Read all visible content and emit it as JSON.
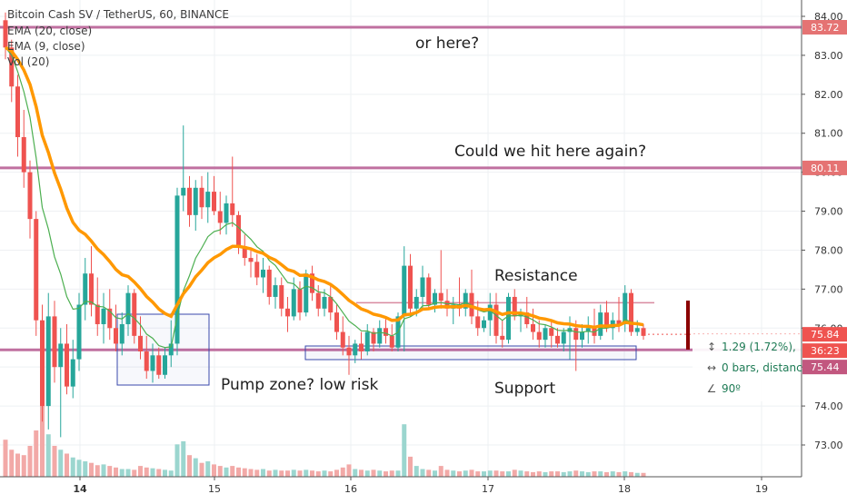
{
  "header": {
    "title": "Bitcoin Cash SV / TetherUS, 60, BINANCE",
    "indicators": [
      "EMA (20, close)",
      "EMA (9, close)",
      "Vol (20)"
    ]
  },
  "annotations": {
    "top": "or here?",
    "middle": "Could we hit here again?",
    "resistance": "Resistance",
    "support": "Support",
    "pump": "Pump zone? low risk"
  },
  "measure": {
    "change": "1.29 (1.72%),",
    "bars": "0 bars, distanc",
    "angle": "90º"
  },
  "colors": {
    "up": "#26a69a",
    "down": "#ef5350",
    "ema20": "#ff9800",
    "ema9": "#4caf50",
    "hline": "#c070a0",
    "box": "#3949ab",
    "price_tag": "#e57373",
    "current_tag": "#ef5350"
  },
  "chart_data": {
    "type": "candlestick",
    "title": "Bitcoin Cash SV / TetherUS, 60, BINANCE",
    "y_ticks": [
      "84.00",
      "83.00",
      "82.00",
      "81.00",
      "80.00",
      "79.00",
      "78.00",
      "77.00",
      "76.00",
      "75.00",
      "74.00",
      "73.00"
    ],
    "x_ticks": [
      "14",
      "15",
      "16",
      "17",
      "18",
      "19"
    ],
    "price_labels": [
      "83.72",
      "80.11",
      "75.84",
      "36:23",
      "75.44"
    ],
    "ylim": [
      72.2,
      84.3
    ],
    "horizontal_levels": [
      83.72,
      80.11,
      75.44
    ],
    "resistance_level": 76.65,
    "current_price": 75.84,
    "candles": [
      [
        83.9,
        84.1,
        82.9,
        83.2
      ],
      [
        83.2,
        83.4,
        81.8,
        82.2
      ],
      [
        82.2,
        82.5,
        80.4,
        80.9
      ],
      [
        80.9,
        81.6,
        79.6,
        80.0
      ],
      [
        80.0,
        80.3,
        78.3,
        78.8
      ],
      [
        78.8,
        79.0,
        75.8,
        76.2
      ],
      [
        76.2,
        76.6,
        73.6,
        74.0
      ],
      [
        74.0,
        76.9,
        73.4,
        76.3
      ],
      [
        76.3,
        76.7,
        74.6,
        75.0
      ],
      [
        75.0,
        76.0,
        73.2,
        75.6
      ],
      [
        75.6,
        76.1,
        74.3,
        74.5
      ],
      [
        74.5,
        75.7,
        74.2,
        75.2
      ],
      [
        75.2,
        76.9,
        74.9,
        76.6
      ],
      [
        76.6,
        77.8,
        76.2,
        77.4
      ],
      [
        77.4,
        78.1,
        76.3,
        76.6
      ],
      [
        76.6,
        77.3,
        75.8,
        76.1
      ],
      [
        76.1,
        76.9,
        75.6,
        76.5
      ],
      [
        76.5,
        77.0,
        75.7,
        76.0
      ],
      [
        76.0,
        76.6,
        75.4,
        75.6
      ],
      [
        75.6,
        76.4,
        75.3,
        76.1
      ],
      [
        76.1,
        77.1,
        75.8,
        76.9
      ],
      [
        76.9,
        77.0,
        75.6,
        75.8
      ],
      [
        75.8,
        76.3,
        75.2,
        75.4
      ],
      [
        75.4,
        75.8,
        74.7,
        74.9
      ],
      [
        74.9,
        75.6,
        74.6,
        75.3
      ],
      [
        75.3,
        75.5,
        74.7,
        74.8
      ],
      [
        74.8,
        75.5,
        74.7,
        75.3
      ],
      [
        75.3,
        76.2,
        75.0,
        75.6
      ],
      [
        75.6,
        79.6,
        75.3,
        79.4
      ],
      [
        79.4,
        81.2,
        79.0,
        79.6
      ],
      [
        79.6,
        79.9,
        78.6,
        78.9
      ],
      [
        78.9,
        79.8,
        78.5,
        79.6
      ],
      [
        79.6,
        79.9,
        78.8,
        79.1
      ],
      [
        79.1,
        80.0,
        78.7,
        79.5
      ],
      [
        79.5,
        79.9,
        78.9,
        79.0
      ],
      [
        79.0,
        79.5,
        78.4,
        78.7
      ],
      [
        78.7,
        79.4,
        78.4,
        79.2
      ],
      [
        79.2,
        80.4,
        78.6,
        78.9
      ],
      [
        78.9,
        79.0,
        77.9,
        78.1
      ],
      [
        78.1,
        78.4,
        77.6,
        77.8
      ],
      [
        77.8,
        78.0,
        77.3,
        77.7
      ],
      [
        77.7,
        77.9,
        77.1,
        77.3
      ],
      [
        77.3,
        77.8,
        76.9,
        77.5
      ],
      [
        77.5,
        77.6,
        76.6,
        76.8
      ],
      [
        76.8,
        77.3,
        76.5,
        77.1
      ],
      [
        77.1,
        77.3,
        76.3,
        76.5
      ],
      [
        76.5,
        76.8,
        75.9,
        76.3
      ],
      [
        76.3,
        77.3,
        76.2,
        77.0
      ],
      [
        77.0,
        77.2,
        76.2,
        76.4
      ],
      [
        76.4,
        77.5,
        76.3,
        77.4
      ],
      [
        77.4,
        77.6,
        76.7,
        76.9
      ],
      [
        76.9,
        77.1,
        76.3,
        76.5
      ],
      [
        76.5,
        77.0,
        76.3,
        76.8
      ],
      [
        76.8,
        77.1,
        76.2,
        76.4
      ],
      [
        76.4,
        76.6,
        75.7,
        75.9
      ],
      [
        75.9,
        76.3,
        75.3,
        75.5
      ],
      [
        75.5,
        75.8,
        74.8,
        75.3
      ],
      [
        75.3,
        75.7,
        75.1,
        75.6
      ],
      [
        75.6,
        75.9,
        75.2,
        75.4
      ],
      [
        75.4,
        76.1,
        75.3,
        75.9
      ],
      [
        75.9,
        76.0,
        75.4,
        75.6
      ],
      [
        75.6,
        76.2,
        75.5,
        76.0
      ],
      [
        76.0,
        76.3,
        75.6,
        75.8
      ],
      [
        75.8,
        76.1,
        75.4,
        75.5
      ],
      [
        75.5,
        76.4,
        75.4,
        76.3
      ],
      [
        76.3,
        78.1,
        75.4,
        77.6
      ],
      [
        77.6,
        77.9,
        76.3,
        76.5
      ],
      [
        76.5,
        77.0,
        76.3,
        76.8
      ],
      [
        76.8,
        77.6,
        76.5,
        77.3
      ],
      [
        77.3,
        77.4,
        76.5,
        76.6
      ],
      [
        76.6,
        77.0,
        76.4,
        76.9
      ],
      [
        76.9,
        78.0,
        76.5,
        76.7
      ],
      [
        76.7,
        77.0,
        76.3,
        76.5
      ],
      [
        76.5,
        76.8,
        76.1,
        76.6
      ],
      [
        76.6,
        77.3,
        76.3,
        76.5
      ],
      [
        76.5,
        77.0,
        76.3,
        76.9
      ],
      [
        76.9,
        77.5,
        76.1,
        76.3
      ],
      [
        76.3,
        76.7,
        75.8,
        76.0
      ],
      [
        76.0,
        76.3,
        75.9,
        76.2
      ],
      [
        76.2,
        76.9,
        75.8,
        76.6
      ],
      [
        76.6,
        76.9,
        75.6,
        75.8
      ],
      [
        75.8,
        76.2,
        75.5,
        75.7
      ],
      [
        75.7,
        76.9,
        75.6,
        76.8
      ],
      [
        76.8,
        77.0,
        76.2,
        76.3
      ],
      [
        76.3,
        76.5,
        75.9,
        76.4
      ],
      [
        76.4,
        76.8,
        76.0,
        76.1
      ],
      [
        76.1,
        76.5,
        75.7,
        75.9
      ],
      [
        75.9,
        76.2,
        75.5,
        75.7
      ],
      [
        75.7,
        76.1,
        75.5,
        76.0
      ],
      [
        76.0,
        76.2,
        75.5,
        75.8
      ],
      [
        75.8,
        76.0,
        75.5,
        75.6
      ],
      [
        75.6,
        76.0,
        75.4,
        75.9
      ],
      [
        75.9,
        76.3,
        75.2,
        76.0
      ],
      [
        76.0,
        76.2,
        74.9,
        75.7
      ],
      [
        75.7,
        76.1,
        75.5,
        75.9
      ],
      [
        75.9,
        76.3,
        75.6,
        76.0
      ],
      [
        76.0,
        76.5,
        75.6,
        75.8
      ],
      [
        75.8,
        76.6,
        75.7,
        76.4
      ],
      [
        76.4,
        76.7,
        75.9,
        76.0
      ],
      [
        76.0,
        76.4,
        75.7,
        76.2
      ],
      [
        76.2,
        76.8,
        75.9,
        76.1
      ],
      [
        76.1,
        77.1,
        75.9,
        76.9
      ],
      [
        76.9,
        77.0,
        75.8,
        75.9
      ],
      [
        75.9,
        76.2,
        75.8,
        76.0
      ],
      [
        76.0,
        76.1,
        75.7,
        75.8
      ]
    ],
    "volume_scale_max": 100,
    "volumes": [
      48,
      35,
      30,
      28,
      40,
      60,
      98,
      55,
      40,
      35,
      30,
      25,
      22,
      20,
      18,
      15,
      16,
      14,
      12,
      10,
      10,
      9,
      14,
      12,
      11,
      10,
      9,
      8,
      42,
      46,
      28,
      24,
      18,
      20,
      16,
      14,
      12,
      14,
      12,
      11,
      10,
      9,
      10,
      8,
      9,
      8,
      8,
      9,
      8,
      9,
      8,
      7,
      8,
      7,
      9,
      12,
      16,
      10,
      9,
      8,
      9,
      8,
      7,
      8,
      8,
      68,
      26,
      14,
      10,
      9,
      8,
      14,
      9,
      8,
      7,
      8,
      9,
      7,
      7,
      8,
      8,
      7,
      7,
      9,
      8,
      7,
      6,
      7,
      6,
      7,
      7,
      6,
      7,
      8,
      7,
      6,
      7,
      7,
      6,
      7,
      6,
      7,
      6,
      5,
      5
    ]
  }
}
